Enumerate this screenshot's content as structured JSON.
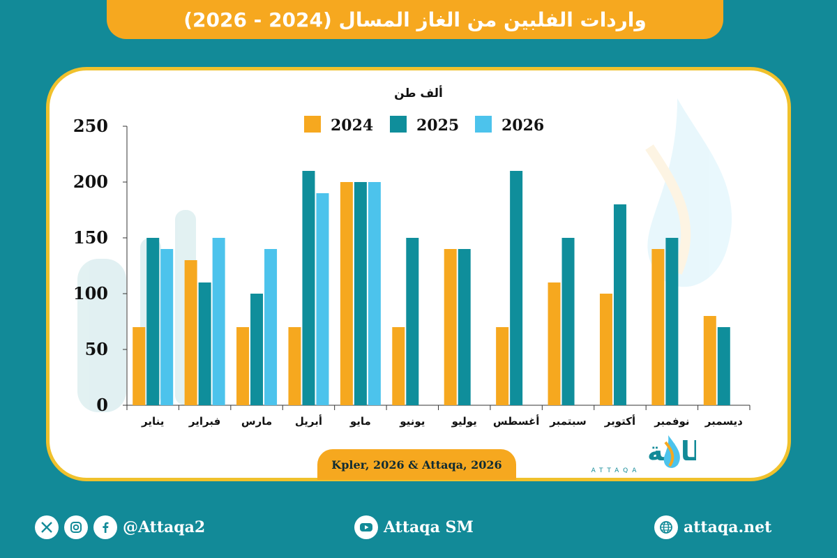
{
  "title": "واردات الفلبين من الغاز المسال (2024 - 2026)",
  "source": "Kpler, 2026 & Attaqa, 2026",
  "brand": {
    "arabic": "الطاقة",
    "latin": "ATTAQA"
  },
  "footer": {
    "social_handle": "@Attaqa2",
    "youtube": "Attaqa SM",
    "website": "attaqa.net"
  },
  "colors": {
    "background": "#128a98",
    "accent": "#f6a81f",
    "panel_border": "#f0c12c",
    "s2024": "#f6a81f",
    "s2025": "#0f8e9b",
    "s2026": "#4cc3ec"
  },
  "chart_data": {
    "type": "bar",
    "unit_label": "ألف طن",
    "categories": [
      "يناير",
      "فبراير",
      "مارس",
      "أبريل",
      "مايو",
      "يونيو",
      "يوليو",
      "أغسطس",
      "سبتمبر",
      "أكتوبر",
      "نوفمبر",
      "ديسمبر"
    ],
    "series": [
      {
        "name": "2024",
        "color": "#f6a81f",
        "values": [
          70,
          130,
          70,
          70,
          200,
          70,
          140,
          70,
          110,
          100,
          140,
          80
        ]
      },
      {
        "name": "2025",
        "color": "#0f8e9b",
        "values": [
          150,
          110,
          100,
          210,
          200,
          150,
          140,
          210,
          150,
          180,
          150,
          70
        ]
      },
      {
        "name": "2026",
        "color": "#4cc3ec",
        "values": [
          140,
          150,
          140,
          190,
          200,
          null,
          null,
          null,
          null,
          null,
          null,
          null
        ]
      }
    ],
    "yticks": [
      0,
      50,
      100,
      150,
      200,
      250
    ],
    "ylim": [
      0,
      250
    ],
    "legend_position": "top-center",
    "grid": false
  }
}
